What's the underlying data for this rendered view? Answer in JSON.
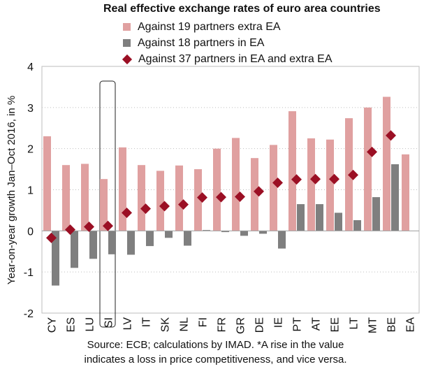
{
  "chart_data": {
    "type": "bar",
    "title": "Real effective exchange rates of euro area countries",
    "ylabel": "Year-on-year growth Jan–Oct 2016, in %",
    "xlabel": "",
    "ylim": [
      -2,
      4
    ],
    "yticks": [
      "-2",
      "-1",
      "0",
      "1",
      "2",
      "3",
      "4"
    ],
    "ytick_values": [
      -2,
      -1,
      0,
      1,
      2,
      3,
      4
    ],
    "grid": true,
    "legend_position": "top",
    "categories": [
      "CY",
      "ES",
      "LU",
      "SI",
      "LV",
      "IT",
      "SK",
      "NL",
      "FI",
      "FR",
      "GR",
      "DE",
      "IE",
      "PT",
      "AT",
      "EE",
      "LT",
      "MT",
      "BE",
      "EA"
    ],
    "highlighted_category": "SI",
    "series": [
      {
        "name": "Against 19 partners extra EA",
        "kind": "bar",
        "color": "#e0a0a0",
        "values": [
          2.3,
          1.6,
          1.63,
          1.26,
          2.03,
          1.6,
          1.46,
          1.59,
          1.5,
          2.0,
          2.26,
          1.77,
          2.09,
          2.91,
          2.25,
          2.22,
          2.74,
          3.0,
          3.26,
          1.86
        ]
      },
      {
        "name": "Against 18 partners in EA",
        "kind": "bar",
        "color": "#7f7f7f",
        "values": [
          -1.33,
          -0.9,
          -0.68,
          -0.57,
          -0.58,
          -0.37,
          -0.17,
          -0.36,
          0.02,
          -0.03,
          -0.12,
          -0.07,
          -0.43,
          0.65,
          0.65,
          0.44,
          0.26,
          0.82,
          1.62,
          null
        ]
      },
      {
        "name": "Against 37 partners in EA and extra EA",
        "kind": "marker",
        "color": "#9b0f24",
        "values": [
          -0.17,
          0.03,
          0.1,
          0.12,
          0.44,
          0.54,
          0.6,
          0.64,
          0.81,
          0.82,
          0.83,
          0.96,
          1.17,
          1.25,
          1.26,
          1.26,
          1.36,
          1.92,
          2.32,
          null
        ]
      }
    ],
    "source_lines": [
      "Source: ECB; calculations by IMAD. *A rise in the value",
      "indicates a loss in price competitiveness, and vice versa."
    ]
  }
}
